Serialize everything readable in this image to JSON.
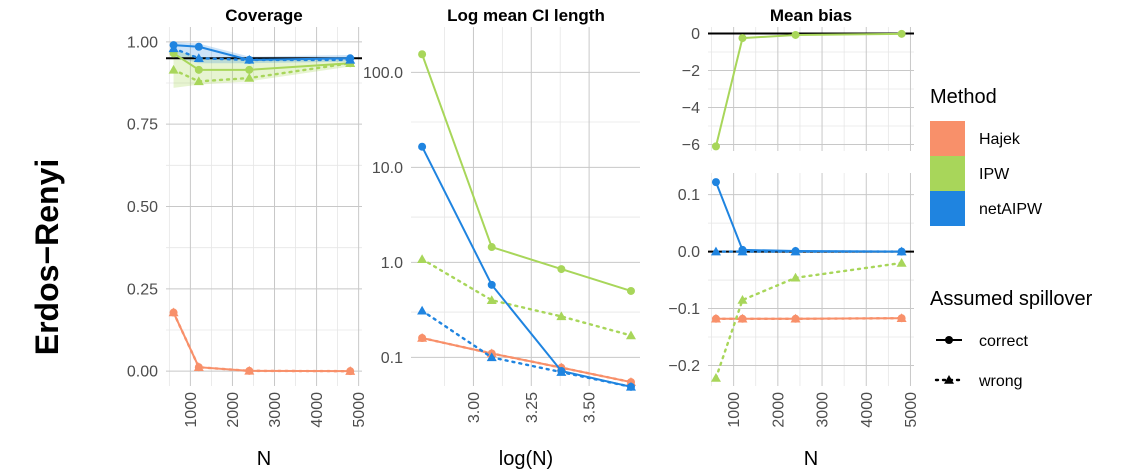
{
  "row_strip": "Erdos−Renyi",
  "legend": {
    "method_title": "Method",
    "methods": [
      {
        "label": "Hajek",
        "color": "#F8906A"
      },
      {
        "label": "IPW",
        "color": "#A8D65A"
      },
      {
        "label": "netAIPW",
        "color": "#1F84E0"
      }
    ],
    "spill_title": "Assumed spillover",
    "spill": [
      {
        "label": "correct",
        "line": "solid",
        "marker": "circle"
      },
      {
        "label": "wrong",
        "line": "dotted",
        "marker": "triangle"
      }
    ]
  },
  "chart_data": [
    {
      "id": "coverage",
      "type": "line",
      "title": "Coverage",
      "xlabel": "N",
      "ylabel": "",
      "xlim": [
        420,
        5080
      ],
      "ylim": [
        -0.045,
        1.045
      ],
      "xticks": [
        1000,
        2000,
        3000,
        4000,
        5000
      ],
      "xtick_labels": [
        "1000",
        "2000",
        "3000",
        "4000",
        "5000"
      ],
      "yticks": [
        0,
        0.25,
        0.5,
        0.75,
        1
      ],
      "ytick_labels": [
        "0.00",
        "0.25",
        "0.50",
        "0.75",
        "1.00"
      ],
      "reference_line": 0.95,
      "grid": true,
      "x": [
        600,
        1200,
        2400,
        4800
      ],
      "series": [
        {
          "method": "Hajek",
          "spillover": "correct",
          "values": [
            0.178,
            0.012,
            0.001,
            0.0
          ]
        },
        {
          "method": "Hajek",
          "spillover": "wrong",
          "values": [
            0.178,
            0.012,
            0.001,
            0.0
          ]
        },
        {
          "method": "IPW",
          "spillover": "correct",
          "values": [
            0.965,
            0.915,
            0.915,
            0.935
          ]
        },
        {
          "method": "IPW",
          "spillover": "wrong",
          "values": [
            0.915,
            0.88,
            0.89,
            0.935
          ]
        },
        {
          "method": "netAIPW",
          "spillover": "correct",
          "values": [
            0.99,
            0.985,
            0.945,
            0.95
          ]
        },
        {
          "method": "netAIPW",
          "spillover": "wrong",
          "values": [
            0.98,
            0.95,
            0.945,
            0.945
          ]
        }
      ]
    },
    {
      "id": "ci_length",
      "type": "line",
      "title": "Log mean CI length",
      "xlabel": "log(N)",
      "ylabel": "",
      "xlim": [
        2.73,
        3.72
      ],
      "ylim": [
        0.05,
        300
      ],
      "y_scale": "log10",
      "xticks": [
        3.0,
        3.25,
        3.5
      ],
      "xtick_labels": [
        "3.00",
        "3.25",
        "3.50"
      ],
      "yticks": [
        0.1,
        1,
        10,
        100
      ],
      "ytick_labels": [
        "0.1",
        "1.0",
        "10.0",
        "100.0"
      ],
      "grid": true,
      "x": [
        2.778,
        3.079,
        3.38,
        3.681
      ],
      "series": [
        {
          "method": "Hajek",
          "spillover": "correct",
          "values": [
            0.16,
            0.11,
            0.078,
            0.055
          ]
        },
        {
          "method": "Hajek",
          "spillover": "wrong",
          "values": [
            0.16,
            0.11,
            0.078,
            0.055
          ]
        },
        {
          "method": "IPW",
          "spillover": "correct",
          "values": [
            155,
            1.45,
            0.85,
            0.5
          ]
        },
        {
          "method": "IPW",
          "spillover": "wrong",
          "values": [
            1.08,
            0.4,
            0.27,
            0.17
          ]
        },
        {
          "method": "netAIPW",
          "spillover": "correct",
          "values": [
            16.5,
            0.58,
            0.072,
            0.049
          ]
        },
        {
          "method": "netAIPW",
          "spillover": "wrong",
          "values": [
            0.31,
            0.1,
            0.07,
            0.049
          ]
        }
      ]
    },
    {
      "id": "bias_top",
      "type": "line",
      "title": "Mean bias",
      "xlabel": "",
      "ylabel": "",
      "xlim": [
        420,
        5080
      ],
      "ylim": [
        -6.35,
        0.35
      ],
      "xticks": [
        1000,
        2000,
        3000,
        4000,
        5000
      ],
      "yticks": [
        0,
        -2,
        -4,
        -6
      ],
      "ytick_labels": [
        "0",
        "−2",
        "−4",
        "−6"
      ],
      "reference_line": 0,
      "grid": true,
      "x": [
        600,
        1200,
        2400,
        4800
      ],
      "series": [
        {
          "method": "IPW",
          "spillover": "correct",
          "values": [
            -6.1,
            -0.25,
            -0.08,
            -0.02
          ]
        }
      ]
    },
    {
      "id": "bias_bottom",
      "type": "line",
      "title": "",
      "xlabel": "N",
      "ylabel": "",
      "xlim": [
        420,
        5080
      ],
      "ylim": [
        -0.236,
        0.138
      ],
      "xticks": [
        1000,
        2000,
        3000,
        4000,
        5000
      ],
      "xtick_labels": [
        "1000",
        "2000",
        "3000",
        "4000",
        "5000"
      ],
      "yticks": [
        0.1,
        0.0,
        -0.1,
        -0.2
      ],
      "ytick_labels": [
        "0.1",
        "0.0",
        "−0.1",
        "−0.2"
      ],
      "reference_line": 0,
      "grid": true,
      "x": [
        600,
        1200,
        2400,
        4800
      ],
      "series": [
        {
          "method": "Hajek",
          "spillover": "correct",
          "values": [
            -0.118,
            -0.118,
            -0.118,
            -0.117
          ]
        },
        {
          "method": "Hajek",
          "spillover": "wrong",
          "values": [
            -0.118,
            -0.118,
            -0.118,
            -0.117
          ]
        },
        {
          "method": "IPW",
          "spillover": "wrong",
          "values": [
            -0.222,
            -0.085,
            -0.046,
            -0.02
          ]
        },
        {
          "method": "netAIPW",
          "spillover": "correct",
          "values": [
            0.122,
            0.003,
            0.001,
            0.0
          ]
        },
        {
          "method": "netAIPW",
          "spillover": "wrong",
          "values": [
            0.0,
            0.0,
            0.0,
            0.0
          ]
        }
      ]
    }
  ]
}
